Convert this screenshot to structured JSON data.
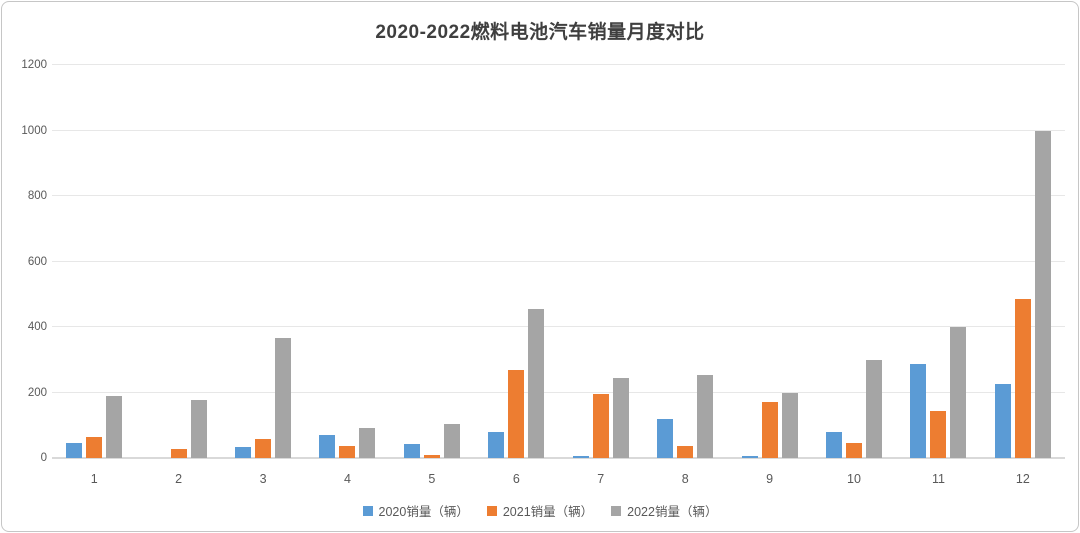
{
  "chart_data": {
    "type": "bar",
    "title": "2020-2022燃料电池汽车销量月度对比",
    "categories": [
      "1",
      "2",
      "3",
      "4",
      "5",
      "6",
      "7",
      "8",
      "9",
      "10",
      "11",
      "12"
    ],
    "series": [
      {
        "name": "2020销量（辆）",
        "color": "#5B9BD5",
        "values": [
          45,
          0,
          35,
          70,
          42,
          80,
          6,
          120,
          6,
          79,
          288,
          226
        ]
      },
      {
        "name": "2021销量（辆）",
        "color": "#ED7D31",
        "values": [
          63,
          28,
          57,
          38,
          10,
          270,
          196,
          38,
          172,
          46,
          145,
          485
        ]
      },
      {
        "name": "2022销量（辆）",
        "color": "#A5A5A5",
        "values": [
          190,
          178,
          365,
          93,
          104,
          455,
          245,
          253,
          200,
          300,
          400,
          1000
        ]
      }
    ],
    "xlabel": "",
    "ylabel": "",
    "ylim": [
      0,
      1200
    ],
    "yticks": [
      0,
      200,
      400,
      600,
      800,
      1000,
      1200
    ],
    "grid": true,
    "legend_position": "bottom"
  },
  "colors": {
    "gridline": "#e7e7e7",
    "baseline": "#d9d9d9",
    "axis_text": "#595959",
    "title_text": "#3f3f3f",
    "frame_border": "#c6c6c6",
    "background": "#ffffff"
  }
}
